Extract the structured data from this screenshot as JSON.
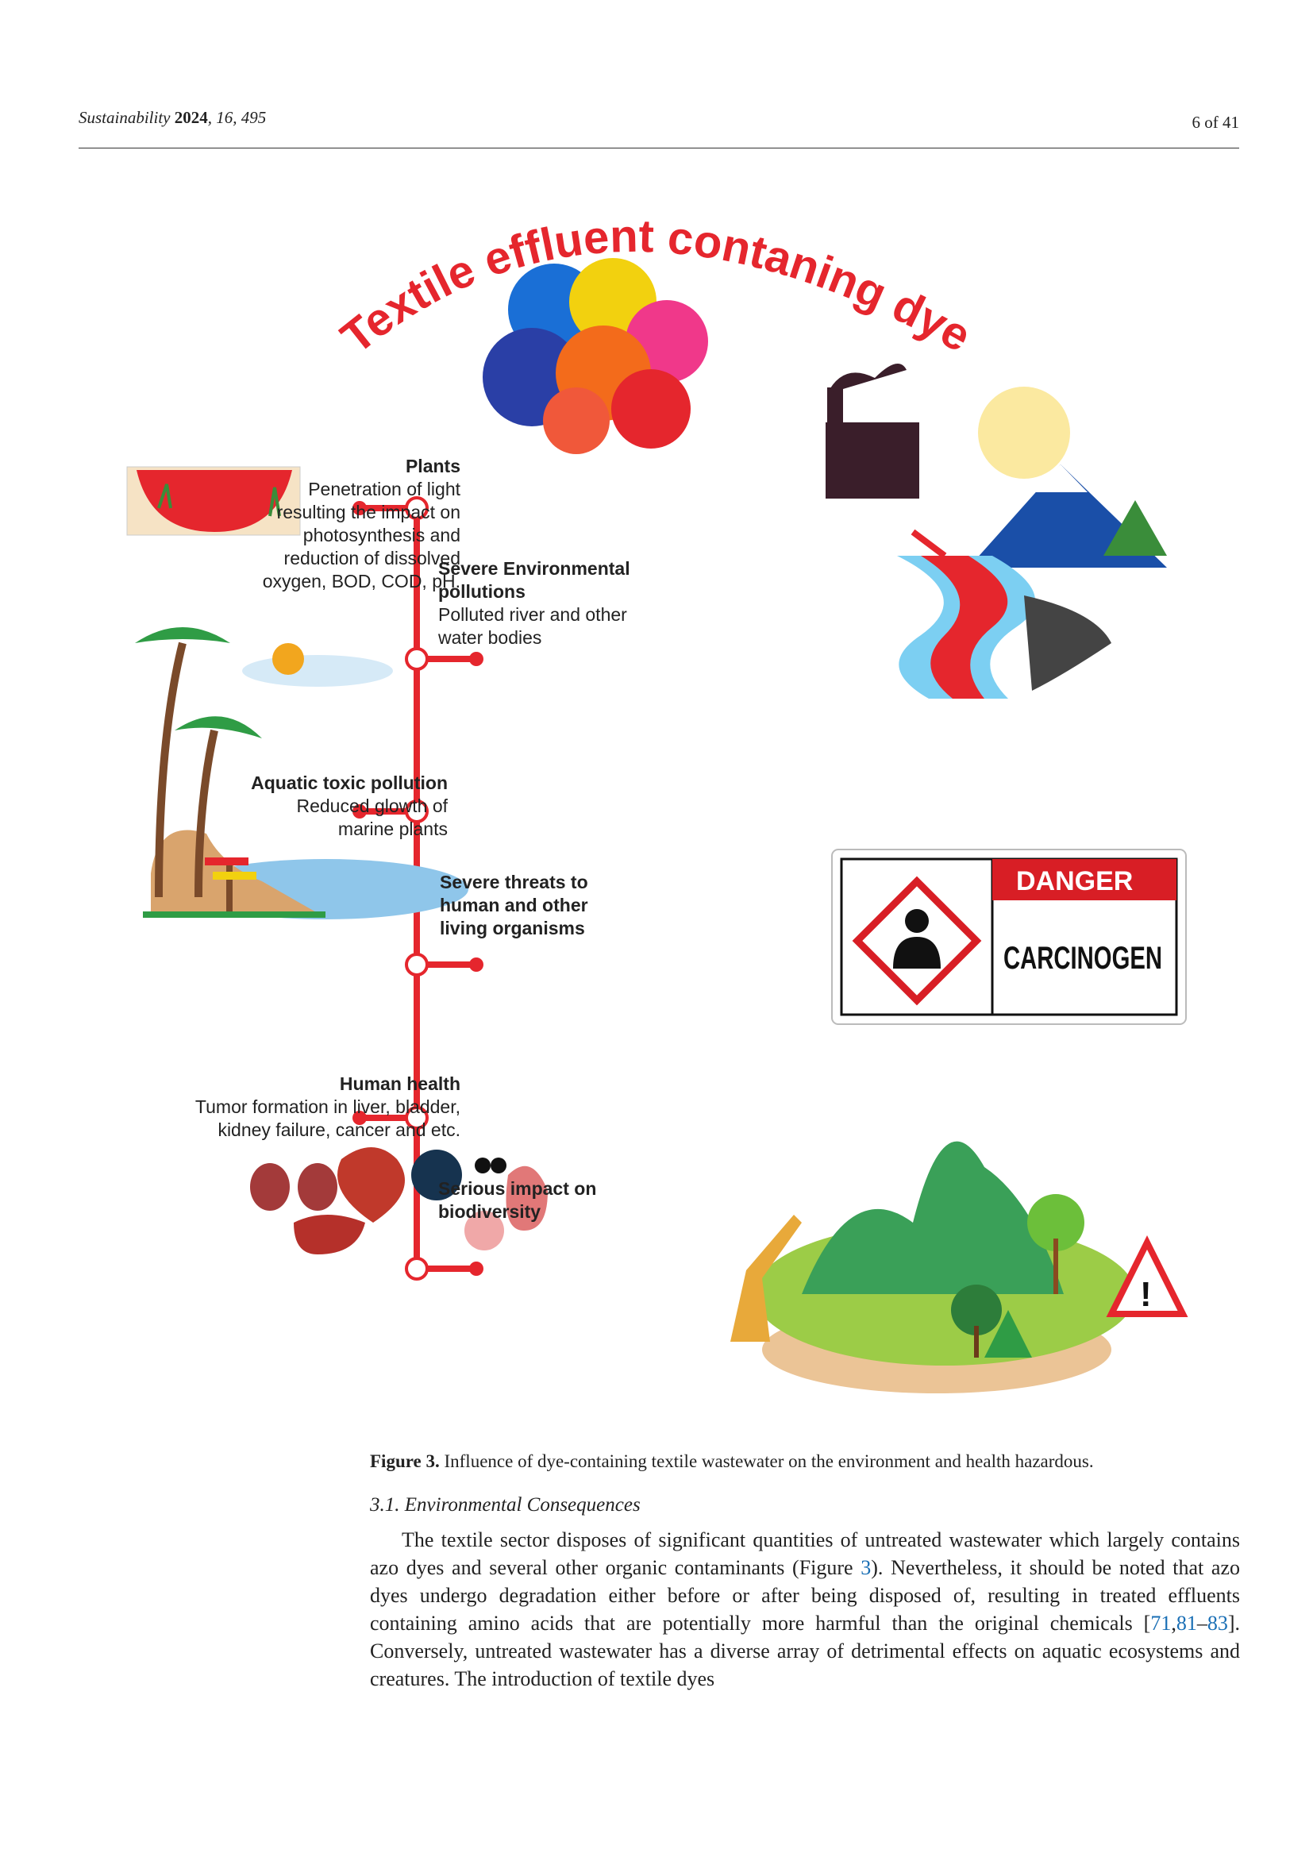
{
  "header": {
    "journal": "Sustainability",
    "year": "2024",
    "volume": "16",
    "article": "495",
    "page": "6 of 41"
  },
  "figure": {
    "title_arc": "Textile effluent contaning dyes",
    "plants": {
      "title": "Plants",
      "body": [
        "Penetration of light",
        "resulting the impact on",
        "photosynthesis  and",
        "reduction of dissolved",
        "oxygen, BOD, COD, pH."
      ]
    },
    "environment": {
      "title": [
        "Severe Environmental",
        "pollutions"
      ],
      "body": [
        "Polluted river and other",
        "water bodies"
      ]
    },
    "aquatic": {
      "title": "Aquatic toxic pollution",
      "body": [
        "Reduced glowth of",
        "marine plants"
      ]
    },
    "threats": {
      "title": [
        "Severe threats to",
        "human and other",
        "living organisms"
      ]
    },
    "human": {
      "title": "Human health",
      "body": [
        "Tumor formation in liver, bladder,",
        "kidney failure, cancer and etc."
      ]
    },
    "biodiversity": {
      "title": [
        "Serious impact on",
        "biodiversity"
      ]
    },
    "sign": {
      "danger": "DANGER",
      "carcinogen": "CARCINOGEN"
    },
    "colors": {
      "accent": "#e5262d",
      "danger_red": "#d81e25"
    }
  },
  "caption": {
    "label": "Figure 3.",
    "text": " Influence of dye-containing textile wastewater on the environment and health hazardous."
  },
  "section": {
    "title": "3.1. Environmental Consequences"
  },
  "paragraph": {
    "p1": "The textile sector disposes of significant quantities of untreated wastewater which largely contains azo dyes and several other organic contaminants (Figure ",
    "fig_ref": "3",
    "p2": "). Nevertheless, it should be noted that azo dyes undergo degradation either before or after being disposed of, resulting in treated effluents containing amino acids that are potentially more harmful than the original chemicals [",
    "ref1": "71",
    "sep1": ",",
    "ref2": "81",
    "sep2": "–",
    "ref3": "83",
    "p3": "]. Conversely, untreated wastewater has a diverse array of detrimental effects on aquatic ecosystems and creatures. The introduction of textile dyes"
  }
}
